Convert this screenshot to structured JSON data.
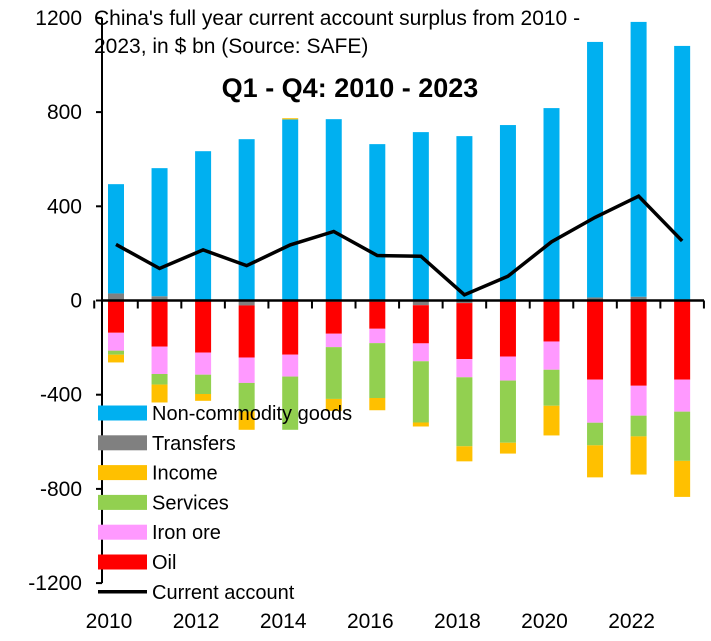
{
  "chart_data": {
    "type": "bar",
    "stacked": true,
    "title_lines": [
      "China's full year current account surplus from 2010 -",
      "2023, in $ bn (Source: SAFE)"
    ],
    "subtitle": "Q1 - Q4: 2010 - 2023",
    "xlabel": "",
    "ylabel": "",
    "ylim": [
      -1200,
      1200
    ],
    "yticks": [
      1200,
      800,
      400,
      0,
      -400,
      -800,
      -1200
    ],
    "categories": [
      2010,
      2011,
      2012,
      2013,
      2014,
      2015,
      2016,
      2017,
      2018,
      2019,
      2020,
      2021,
      2022,
      2023
    ],
    "xtick_labels": [
      "2010",
      "2012",
      "2014",
      "2016",
      "2018",
      "2020",
      "2022"
    ],
    "legend_position": "bottom-left",
    "grid": false,
    "series": [
      {
        "name": "Non-commodity goods",
        "color": "#00b0f0",
        "values": [
          464,
          544,
          634,
          685,
          769,
          770,
          664,
          715,
          698,
          745,
          817,
          1085,
          1167,
          1076
        ]
      },
      {
        "name": "Transfers",
        "color": "#808080",
        "values": [
          30,
          18,
          0,
          -21,
          0,
          -5,
          -5,
          -20,
          -11,
          0,
          0,
          13,
          16,
          5
        ]
      },
      {
        "name": "Income",
        "color": "#ffc000",
        "values": [
          -33,
          -76,
          -29,
          -78,
          5,
          -51,
          -52,
          -17,
          -64,
          -46,
          -126,
          -136,
          -162,
          -153
        ]
      },
      {
        "name": "Services",
        "color": "#92d050",
        "values": [
          -17,
          -45,
          -82,
          -121,
          -226,
          -220,
          -233,
          -260,
          -293,
          -264,
          -153,
          -96,
          -88,
          -209
        ]
      },
      {
        "name": "Iron ore",
        "color": "#ff99ff",
        "values": [
          -76,
          -116,
          -94,
          -108,
          -93,
          -57,
          -61,
          -76,
          -77,
          -102,
          -120,
          -183,
          -127,
          -136
        ]
      },
      {
        "name": "Oil",
        "color": "#ff0000",
        "values": [
          -137,
          -196,
          -221,
          -221,
          -230,
          -136,
          -115,
          -162,
          -238,
          -238,
          -174,
          -336,
          -362,
          -336
        ]
      }
    ],
    "line": {
      "name": "Current account",
      "color": "#000000",
      "values": [
        238,
        136,
        215,
        148,
        236,
        293,
        191,
        188,
        24,
        103,
        249,
        353,
        443,
        253
      ]
    }
  }
}
